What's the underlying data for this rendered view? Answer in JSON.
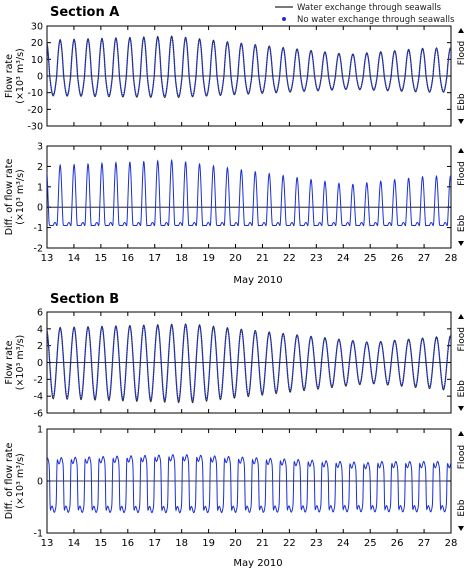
{
  "figure": {
    "legend": [
      {
        "label": "Water exchange through seawalls",
        "marker": "line",
        "color": "#2b2b2b"
      },
      {
        "label": "No water exchange through seawalls",
        "marker": "dot",
        "color": "#1a2fd6"
      }
    ],
    "colors": {
      "simulated": "#1a2fd6",
      "reference": "#2b2b2b",
      "axis": "#000000"
    }
  },
  "chart_data": [
    {
      "type": "line",
      "panel": "A-flow",
      "section_title": "Section A",
      "ylabel": [
        "Flow rate",
        "(×10³ m³/s)"
      ],
      "ylim": [
        -30,
        30
      ],
      "yticks": [
        -30,
        -20,
        -10,
        0,
        10,
        20,
        30
      ],
      "xlim": [
        13,
        28
      ],
      "xticks": [
        13,
        14,
        15,
        16,
        17,
        18,
        19,
        20,
        21,
        22,
        23,
        24,
        25,
        26,
        27,
        28
      ],
      "right_labels": {
        "top": "Flood",
        "bottom": "Ebb"
      },
      "zero_line": true,
      "signal": {
        "period_days": 0.5175,
        "phase": 0.35,
        "peak_max": 24,
        "peak_min": 13,
        "trough_max": -13,
        "trough_min": -8,
        "spring_day": 17.7,
        "neap_day": 24.2
      },
      "series": [
        {
          "name": "Water exchange through seawalls",
          "role": "line"
        },
        {
          "name": "No water exchange through seawalls",
          "role": "dots"
        }
      ]
    },
    {
      "type": "line",
      "panel": "A-diff",
      "ylabel": [
        "Diff. of flow rate",
        "(×10³ m³/s)"
      ],
      "ylim": [
        -2,
        3
      ],
      "yticks": [
        -2,
        -1,
        0,
        1,
        2,
        3
      ],
      "xlim": [
        13,
        28
      ],
      "xticks": [
        13,
        14,
        15,
        16,
        17,
        18,
        19,
        20,
        21,
        22,
        23,
        24,
        25,
        26,
        27,
        28
      ],
      "xlabel": "May 2010",
      "right_labels": {
        "top": "Flood",
        "bottom": "Ebb"
      },
      "zero_line": true,
      "signal": {
        "period_days": 0.5175,
        "phase": 0.35,
        "peak_max": 2.3,
        "peak_min": 1.1,
        "base": -0.9,
        "spring_day": 17.7,
        "neap_day": 24.2
      },
      "series": [
        {
          "name": "Difference",
          "role": "line"
        }
      ]
    },
    {
      "type": "line",
      "panel": "B-flow",
      "section_title": "Section B",
      "ylabel": [
        "Flow rate",
        "(×10³ m³/s)"
      ],
      "ylim": [
        -6,
        6
      ],
      "yticks": [
        -6,
        -4,
        -2,
        0,
        2,
        4,
        6
      ],
      "xlim": [
        13,
        28
      ],
      "xticks": [
        13,
        14,
        15,
        16,
        17,
        18,
        19,
        20,
        21,
        22,
        23,
        24,
        25,
        26,
        27,
        28
      ],
      "right_labels": {
        "top": "Flood",
        "bottom": "Ebb"
      },
      "zero_line": true,
      "signal": {
        "period_days": 0.5175,
        "phase": 0.35,
        "peak_max": 4.6,
        "peak_min": 2.4,
        "trough_max": -4.8,
        "trough_min": -2.5,
        "spring_day": 18.3,
        "neap_day": 25.0
      },
      "series": [
        {
          "name": "Water exchange through seawalls",
          "role": "line"
        },
        {
          "name": "No water exchange through seawalls",
          "role": "dots"
        }
      ]
    },
    {
      "type": "line",
      "panel": "B-diff",
      "ylabel": [
        "Diff. of flow rate",
        "(×10³ m³/s)"
      ],
      "ylim": [
        -1,
        1
      ],
      "yticks": [
        -1,
        0,
        1
      ],
      "xlim": [
        13,
        28
      ],
      "xticks": [
        13,
        14,
        15,
        16,
        17,
        18,
        19,
        20,
        21,
        22,
        23,
        24,
        25,
        26,
        27,
        28
      ],
      "xlabel": "May 2010",
      "right_labels": {
        "top": "Flood",
        "bottom": "Ebb"
      },
      "zero_line": true,
      "signal": {
        "period_days": 0.5175,
        "phase": 0.35,
        "plateau_high": 0.45,
        "plateau_low": -0.55,
        "spring_day": 18.0,
        "neap_day": 25.0
      },
      "series": [
        {
          "name": "Difference",
          "role": "line"
        }
      ]
    }
  ]
}
